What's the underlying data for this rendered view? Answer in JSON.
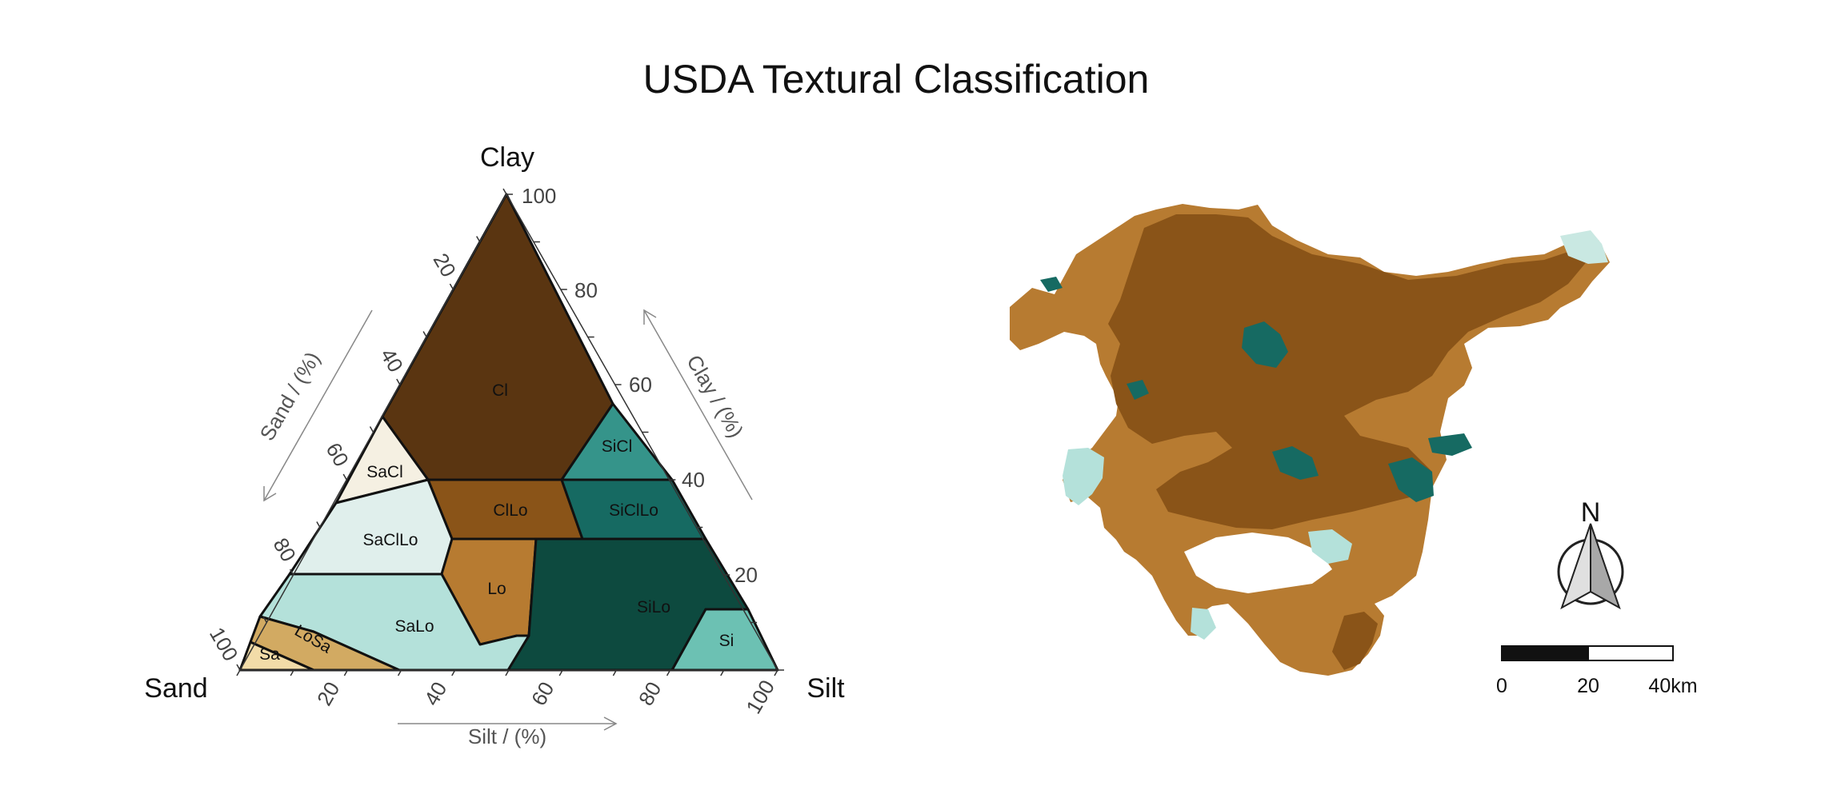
{
  "title": "USDA Textural Classification",
  "ternary": {
    "corners": {
      "top": "Clay",
      "left": "Sand",
      "right": "Silt"
    },
    "axes": {
      "clay": {
        "title": "Clay / (%)",
        "ticks": [
          20,
          40,
          60,
          80,
          100
        ]
      },
      "sand": {
        "title": "Sand / (%)",
        "ticks": [
          20,
          40,
          60,
          80,
          100
        ]
      },
      "silt": {
        "title": "Silt / (%)",
        "ticks": [
          20,
          40,
          60,
          80,
          100
        ]
      }
    },
    "classes": [
      {
        "label": "Cl",
        "color": "#5a3511"
      },
      {
        "label": "SiCl",
        "color": "#35948a"
      },
      {
        "label": "SaCl",
        "color": "#f5f0e2"
      },
      {
        "label": "ClLo",
        "color": "#8a5418"
      },
      {
        "label": "SiClLo",
        "color": "#166a62"
      },
      {
        "label": "SaClLo",
        "color": "#e0efec"
      },
      {
        "label": "Lo",
        "color": "#b77b31"
      },
      {
        "label": "SiLo",
        "color": "#0d4a3f"
      },
      {
        "label": "SaLo",
        "color": "#b4e1da"
      },
      {
        "label": "LoSa",
        "color": "#d2aa62"
      },
      {
        "label": "Sa",
        "color": "#f2dca8"
      },
      {
        "label": "Si",
        "color": "#6cc1b3"
      }
    ]
  },
  "map": {
    "north_label": "N",
    "scale_bar": {
      "labels": [
        "0",
        "20",
        "40km"
      ]
    }
  }
}
